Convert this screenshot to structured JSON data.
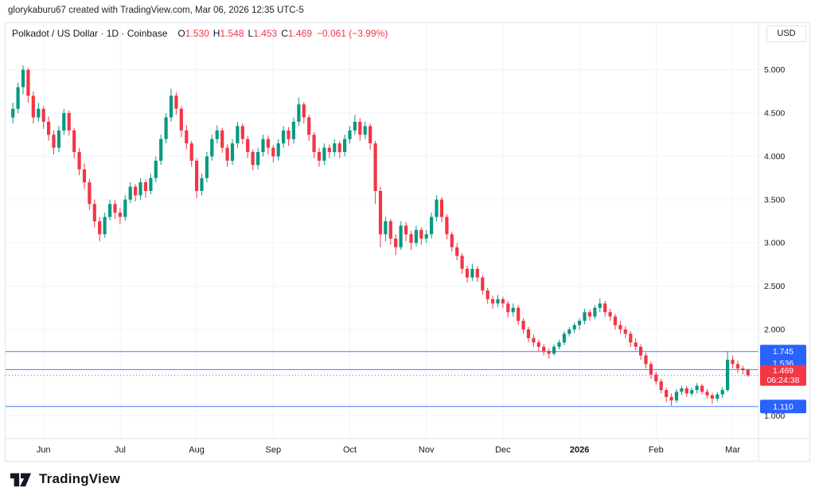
{
  "attribution": "glorykaburu67 created with TradingView.com, Mar 06, 2026 12:35 UTC-5",
  "header": {
    "title": "Polkadot / US Dollar · 1D · Coinbase",
    "symbol": "Polkadot / US Dollar",
    "interval": "1D",
    "exchange": "Coinbase",
    "ohlc": {
      "o_key": "O",
      "o": "1.530",
      "h_key": "H",
      "h": "1.548",
      "l_key": "L",
      "l": "1.453",
      "c_key": "C",
      "c": "1.469",
      "change": "−0.061 (−3.99%)"
    },
    "currency_button": "USD"
  },
  "footer": {
    "brand": "TradingView"
  },
  "chart_data": {
    "type": "candlestick",
    "title": "Polkadot / US Dollar, 1D, Coinbase",
    "price_axis_side": "right",
    "price_min": 0.74,
    "price_max": 5.54,
    "grid_prices": [
      5.0,
      4.5,
      4.0,
      3.5,
      3.0,
      2.5,
      2.0,
      1.5,
      1.0
    ],
    "y_tick_labels": [
      {
        "p": 5.0,
        "t": "5.000"
      },
      {
        "p": 4.5,
        "t": "4.500"
      },
      {
        "p": 4.0,
        "t": "4.000"
      },
      {
        "p": 3.5,
        "t": "3.500"
      },
      {
        "p": 3.0,
        "t": "3.000"
      },
      {
        "p": 2.5,
        "t": "2.500"
      },
      {
        "p": 2.0,
        "t": "2.000"
      },
      {
        "p": 1.0,
        "t": "1.000"
      }
    ],
    "x_ticks": [
      {
        "i": 6,
        "label": "Jun"
      },
      {
        "i": 21,
        "label": "Jul"
      },
      {
        "i": 36,
        "label": "Aug"
      },
      {
        "i": 51,
        "label": "Sep"
      },
      {
        "i": 66,
        "label": "Oct"
      },
      {
        "i": 81,
        "label": "Nov"
      },
      {
        "i": 96,
        "label": "Dec"
      },
      {
        "i": 111,
        "label": "2026",
        "bold": true
      },
      {
        "i": 126,
        "label": "Feb"
      },
      {
        "i": 141,
        "label": "Mar"
      }
    ],
    "colors": {
      "up": "#089981",
      "down": "#F23645",
      "level": "#2962FF",
      "last": "#F23645",
      "grid": "#f0f3fa",
      "axis_border": "#e0e3eb",
      "axis_text": "#131722"
    },
    "levels": [
      {
        "price": 1.745,
        "label": "1.745"
      },
      {
        "price": 1.536,
        "label": "1.536",
        "label_offset": -8
      },
      {
        "price": 1.11,
        "label": "1.110"
      }
    ],
    "last_price": {
      "price": 1.469,
      "label": "1.469",
      "countdown": "06:24:38"
    },
    "candles": [
      [
        4.45,
        4.62,
        4.38,
        4.55
      ],
      [
        4.55,
        4.85,
        4.5,
        4.8
      ],
      [
        4.8,
        5.05,
        4.72,
        5.0
      ],
      [
        5.0,
        5.02,
        4.62,
        4.7
      ],
      [
        4.7,
        4.75,
        4.38,
        4.45
      ],
      [
        4.45,
        4.62,
        4.4,
        4.55
      ],
      [
        4.55,
        4.58,
        4.32,
        4.4
      ],
      [
        4.4,
        4.46,
        4.18,
        4.25
      ],
      [
        4.25,
        4.3,
        4.02,
        4.1
      ],
      [
        4.1,
        4.35,
        4.05,
        4.3
      ],
      [
        4.3,
        4.55,
        4.25,
        4.5
      ],
      [
        4.5,
        4.53,
        4.24,
        4.3
      ],
      [
        4.3,
        4.33,
        3.98,
        4.05
      ],
      [
        4.05,
        4.1,
        3.78,
        3.85
      ],
      [
        3.85,
        3.92,
        3.62,
        3.7
      ],
      [
        3.7,
        3.74,
        3.38,
        3.45
      ],
      [
        3.45,
        3.5,
        3.18,
        3.25
      ],
      [
        3.25,
        3.3,
        3.02,
        3.1
      ],
      [
        3.1,
        3.35,
        3.06,
        3.3
      ],
      [
        3.3,
        3.5,
        3.26,
        3.45
      ],
      [
        3.45,
        3.49,
        3.28,
        3.35
      ],
      [
        3.35,
        3.4,
        3.22,
        3.3
      ],
      [
        3.3,
        3.55,
        3.26,
        3.5
      ],
      [
        3.5,
        3.7,
        3.46,
        3.65
      ],
      [
        3.65,
        3.68,
        3.48,
        3.55
      ],
      [
        3.55,
        3.75,
        3.5,
        3.7
      ],
      [
        3.7,
        3.73,
        3.52,
        3.6
      ],
      [
        3.6,
        3.8,
        3.56,
        3.75
      ],
      [
        3.75,
        4.0,
        3.7,
        3.95
      ],
      [
        3.95,
        4.25,
        3.9,
        4.2
      ],
      [
        4.2,
        4.5,
        4.15,
        4.45
      ],
      [
        4.45,
        4.78,
        4.4,
        4.7
      ],
      [
        4.7,
        4.74,
        4.48,
        4.55
      ],
      [
        4.55,
        4.58,
        4.22,
        4.3
      ],
      [
        4.3,
        4.36,
        4.08,
        4.15
      ],
      [
        4.15,
        4.18,
        3.88,
        3.95
      ],
      [
        3.95,
        3.98,
        3.52,
        3.6
      ],
      [
        3.6,
        3.8,
        3.55,
        3.75
      ],
      [
        3.75,
        4.05,
        3.7,
        4.0
      ],
      [
        4.0,
        4.25,
        3.95,
        4.2
      ],
      [
        4.2,
        4.36,
        4.15,
        4.3
      ],
      [
        4.3,
        4.33,
        4.04,
        4.1
      ],
      [
        4.1,
        4.14,
        3.88,
        3.95
      ],
      [
        3.95,
        4.2,
        3.9,
        4.15
      ],
      [
        4.15,
        4.4,
        4.1,
        4.35
      ],
      [
        4.35,
        4.38,
        4.14,
        4.2
      ],
      [
        4.2,
        4.24,
        3.98,
        4.05
      ],
      [
        4.05,
        4.08,
        3.84,
        3.9
      ],
      [
        3.9,
        4.1,
        3.85,
        4.05
      ],
      [
        4.05,
        4.25,
        4.0,
        4.2
      ],
      [
        4.2,
        4.24,
        4.02,
        4.1
      ],
      [
        4.1,
        4.13,
        3.93,
        4.0
      ],
      [
        4.0,
        4.2,
        3.95,
        4.15
      ],
      [
        4.15,
        4.35,
        4.1,
        4.3
      ],
      [
        4.3,
        4.34,
        4.12,
        4.2
      ],
      [
        4.2,
        4.45,
        4.15,
        4.4
      ],
      [
        4.4,
        4.68,
        4.35,
        4.6
      ],
      [
        4.6,
        4.63,
        4.38,
        4.45
      ],
      [
        4.45,
        4.48,
        4.18,
        4.25
      ],
      [
        4.25,
        4.28,
        3.98,
        4.05
      ],
      [
        4.05,
        4.1,
        3.88,
        3.95
      ],
      [
        3.95,
        4.15,
        3.9,
        4.1
      ],
      [
        4.1,
        4.14,
        3.98,
        4.05
      ],
      [
        4.05,
        4.2,
        4.0,
        4.15
      ],
      [
        4.15,
        4.18,
        3.98,
        4.05
      ],
      [
        4.05,
        4.25,
        4.0,
        4.2
      ],
      [
        4.2,
        4.35,
        4.15,
        4.3
      ],
      [
        4.3,
        4.48,
        4.25,
        4.4
      ],
      [
        4.4,
        4.44,
        4.18,
        4.25
      ],
      [
        4.25,
        4.4,
        4.2,
        4.35
      ],
      [
        4.35,
        4.38,
        4.08,
        4.15
      ],
      [
        4.15,
        4.18,
        3.45,
        3.6
      ],
      [
        3.6,
        3.65,
        2.95,
        3.1
      ],
      [
        3.1,
        3.3,
        3.02,
        3.25
      ],
      [
        3.25,
        3.28,
        2.98,
        3.05
      ],
      [
        3.05,
        3.1,
        2.86,
        2.95
      ],
      [
        2.95,
        3.25,
        2.92,
        3.2
      ],
      [
        3.2,
        3.24,
        3.02,
        3.1
      ],
      [
        3.1,
        3.14,
        2.92,
        3.0
      ],
      [
        3.0,
        3.2,
        2.96,
        3.15
      ],
      [
        3.15,
        3.18,
        2.98,
        3.05
      ],
      [
        3.05,
        3.15,
        3.0,
        3.1
      ],
      [
        3.1,
        3.35,
        3.05,
        3.3
      ],
      [
        3.3,
        3.55,
        3.25,
        3.5
      ],
      [
        3.5,
        3.53,
        3.24,
        3.3
      ],
      [
        3.3,
        3.33,
        3.04,
        3.1
      ],
      [
        3.1,
        3.13,
        2.9,
        2.95
      ],
      [
        2.95,
        3.0,
        2.8,
        2.85
      ],
      [
        2.85,
        2.88,
        2.64,
        2.7
      ],
      [
        2.7,
        2.74,
        2.54,
        2.6
      ],
      [
        2.6,
        2.76,
        2.56,
        2.7
      ],
      [
        2.7,
        2.73,
        2.55,
        2.6
      ],
      [
        2.6,
        2.63,
        2.4,
        2.45
      ],
      [
        2.45,
        2.48,
        2.3,
        2.35
      ],
      [
        2.35,
        2.39,
        2.24,
        2.3
      ],
      [
        2.3,
        2.4,
        2.26,
        2.35
      ],
      [
        2.35,
        2.38,
        2.25,
        2.3
      ],
      [
        2.3,
        2.33,
        2.14,
        2.2
      ],
      [
        2.2,
        2.3,
        2.15,
        2.25
      ],
      [
        2.25,
        2.28,
        2.05,
        2.1
      ],
      [
        2.1,
        2.13,
        1.95,
        2.0
      ],
      [
        2.0,
        2.03,
        1.85,
        1.9
      ],
      [
        1.9,
        1.94,
        1.8,
        1.85
      ],
      [
        1.85,
        1.88,
        1.75,
        1.8
      ],
      [
        1.8,
        1.83,
        1.7,
        1.75
      ],
      [
        1.75,
        1.78,
        1.66,
        1.72
      ],
      [
        1.72,
        1.83,
        1.7,
        1.8
      ],
      [
        1.8,
        1.88,
        1.77,
        1.85
      ],
      [
        1.85,
        1.98,
        1.82,
        1.95
      ],
      [
        1.95,
        2.03,
        1.92,
        2.0
      ],
      [
        2.0,
        2.08,
        1.96,
        2.05
      ],
      [
        2.05,
        2.13,
        2.0,
        2.1
      ],
      [
        2.1,
        2.24,
        2.06,
        2.2
      ],
      [
        2.2,
        2.23,
        2.1,
        2.15
      ],
      [
        2.15,
        2.28,
        2.12,
        2.25
      ],
      [
        2.25,
        2.36,
        2.2,
        2.3
      ],
      [
        2.3,
        2.33,
        2.15,
        2.2
      ],
      [
        2.2,
        2.24,
        2.1,
        2.15
      ],
      [
        2.15,
        2.18,
        2.0,
        2.05
      ],
      [
        2.05,
        2.1,
        1.95,
        2.0
      ],
      [
        2.0,
        2.04,
        1.9,
        1.95
      ],
      [
        1.95,
        1.98,
        1.8,
        1.85
      ],
      [
        1.85,
        1.9,
        1.76,
        1.8
      ],
      [
        1.8,
        1.83,
        1.65,
        1.7
      ],
      [
        1.7,
        1.73,
        1.55,
        1.6
      ],
      [
        1.6,
        1.63,
        1.43,
        1.48
      ],
      [
        1.48,
        1.51,
        1.36,
        1.4
      ],
      [
        1.4,
        1.43,
        1.26,
        1.3
      ],
      [
        1.3,
        1.33,
        1.16,
        1.22
      ],
      [
        1.22,
        1.26,
        1.12,
        1.18
      ],
      [
        1.18,
        1.31,
        1.15,
        1.28
      ],
      [
        1.28,
        1.35,
        1.24,
        1.32
      ],
      [
        1.32,
        1.35,
        1.22,
        1.26
      ],
      [
        1.26,
        1.33,
        1.23,
        1.3
      ],
      [
        1.3,
        1.38,
        1.26,
        1.35
      ],
      [
        1.35,
        1.37,
        1.25,
        1.28
      ],
      [
        1.28,
        1.31,
        1.2,
        1.24
      ],
      [
        1.24,
        1.27,
        1.14,
        1.2
      ],
      [
        1.2,
        1.28,
        1.17,
        1.25
      ],
      [
        1.25,
        1.33,
        1.21,
        1.3
      ],
      [
        1.3,
        1.75,
        1.28,
        1.65
      ],
      [
        1.65,
        1.7,
        1.55,
        1.6
      ],
      [
        1.6,
        1.64,
        1.5,
        1.55
      ],
      [
        1.55,
        1.58,
        1.48,
        1.53
      ],
      [
        1.53,
        1.548,
        1.453,
        1.469
      ]
    ]
  }
}
